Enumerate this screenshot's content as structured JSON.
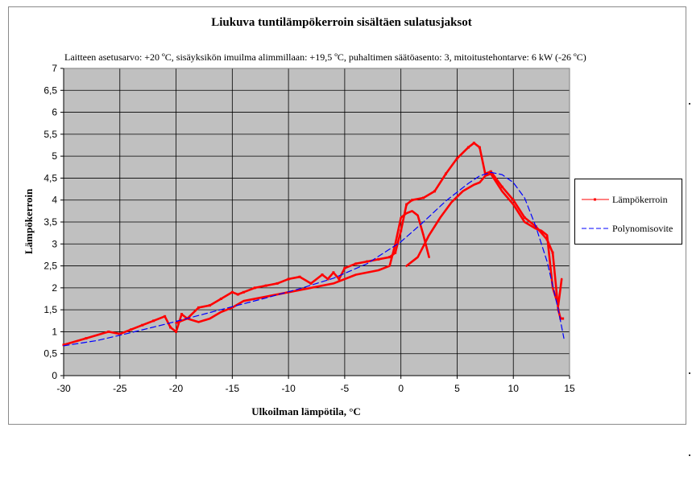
{
  "chart_data": {
    "type": "line",
    "title": "Liukuva tuntilämpökerroin sisältäen sulatusjaksot",
    "subtitle": "Laitteen asetusarvo: +20 ºC, sisäyksikön imuilma alimmillaan: +19,5 ºC, puhaltimen säätöasento: 3, mitoitustehontarve: 6 kW (-26 ºC)",
    "xlabel": "Ulkoilman lämpötila, °C",
    "ylabel": "Lämpökerroin",
    "xlim": [
      -30,
      15
    ],
    "ylim": [
      0,
      7
    ],
    "x_ticks": [
      "-30",
      "-25",
      "-20",
      "-15",
      "-10",
      "-5",
      "0",
      "5",
      "10",
      "15"
    ],
    "y_ticks": [
      "0",
      "0,5",
      "1",
      "1,5",
      "2",
      "2,5",
      "3",
      "3,5",
      "4",
      "4,5",
      "5",
      "5,5",
      "6",
      "6,5",
      "7"
    ],
    "grid": true,
    "plot_background": "#c0c0c0",
    "legend_position": "right",
    "series": [
      {
        "name": "Lämpökerroin",
        "color": "#ff0000",
        "style": "solid-with-markers",
        "x": [
          -30,
          -28,
          -26,
          -25,
          -24,
          -23,
          -22,
          -21,
          -20.5,
          -20,
          -19.5,
          -19,
          -18,
          -17,
          -16,
          -15,
          -14.5,
          -14,
          -13,
          -12,
          -11,
          -10,
          -9,
          -8,
          -7,
          -6.5,
          -6,
          -5.5,
          -5,
          -4,
          -3,
          -2,
          -1,
          -0.5,
          0,
          0.5,
          1,
          2,
          3,
          4,
          5,
          6,
          6.5,
          7,
          7.5,
          8,
          9,
          10,
          11,
          12,
          13,
          13.5,
          14,
          14.2,
          14.4
        ],
        "y": [
          0.7,
          0.85,
          1.0,
          0.95,
          1.05,
          1.15,
          1.25,
          1.35,
          1.1,
          1.0,
          1.4,
          1.3,
          1.55,
          1.6,
          1.75,
          1.9,
          1.85,
          1.9,
          2.0,
          2.05,
          2.1,
          2.2,
          2.25,
          2.1,
          2.3,
          2.2,
          2.35,
          2.2,
          2.45,
          2.55,
          2.6,
          2.65,
          2.7,
          2.8,
          3.3,
          3.9,
          4.0,
          4.05,
          4.2,
          4.6,
          4.95,
          5.2,
          5.3,
          5.2,
          4.6,
          4.65,
          4.3,
          4.0,
          3.6,
          3.4,
          3.1,
          2.8,
          1.5,
          1.3,
          1.3
        ]
      },
      {
        "name": "",
        "color": "#ff0000",
        "style": "solid",
        "x": [
          -20,
          -19,
          -18,
          -17,
          -16,
          -15,
          -14,
          -12,
          -10,
          -8,
          -6,
          -4,
          -2,
          -1,
          -0.5,
          0,
          0.5,
          1,
          1.5,
          2,
          2.5
        ],
        "y": [
          1.2,
          1.3,
          1.22,
          1.3,
          1.45,
          1.55,
          1.7,
          1.8,
          1.9,
          2.0,
          2.1,
          2.3,
          2.4,
          2.5,
          3.0,
          3.6,
          3.7,
          3.75,
          3.65,
          3.2,
          2.7
        ]
      },
      {
        "name": "",
        "color": "#ff0000",
        "style": "solid",
        "x": [
          0.5,
          1.5,
          2.5,
          3.5,
          4.5,
          5.5,
          6.5,
          7.0,
          7.5,
          8.0,
          8.5,
          9,
          10,
          11,
          12,
          12.5,
          13,
          13.5,
          14,
          14.3
        ],
        "y": [
          2.5,
          2.7,
          3.2,
          3.6,
          3.95,
          4.2,
          4.35,
          4.4,
          4.55,
          4.6,
          4.4,
          4.2,
          3.9,
          3.5,
          3.35,
          3.3,
          3.2,
          2.0,
          1.6,
          2.2
        ]
      },
      {
        "name": "Polynomisovite",
        "color": "#0000ff",
        "style": "dashed",
        "x": [
          -30,
          -27,
          -24,
          -21,
          -18,
          -15,
          -12,
          -9,
          -6,
          -3,
          0,
          2,
          4,
          6,
          7,
          8,
          9,
          10,
          11,
          12,
          13,
          13.5,
          14,
          14.5
        ],
        "y": [
          0.68,
          0.8,
          0.98,
          1.17,
          1.37,
          1.57,
          1.77,
          1.98,
          2.22,
          2.55,
          3.05,
          3.5,
          3.98,
          4.38,
          4.55,
          4.63,
          4.58,
          4.4,
          4.05,
          3.4,
          2.6,
          2.05,
          1.5,
          0.85
        ]
      }
    ]
  }
}
